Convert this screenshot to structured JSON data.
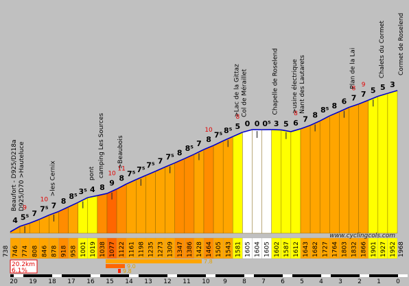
{
  "chart_data": {
    "type": "area",
    "watermark": "www.cyclingcols.com",
    "start_altitude": "738",
    "end_altitude": "1968",
    "km_ticks": [
      "20",
      "19",
      "18",
      "17",
      "16",
      "15",
      "14",
      "13",
      "12",
      "11",
      "10",
      "9",
      "8",
      "7",
      "6",
      "5",
      "4",
      "3",
      "2",
      "1",
      "0"
    ],
    "summary": {
      "length": "20.2km",
      "avg_grade": "6.1%"
    },
    "max_bars": [
      "7.8",
      "9.0",
      "9.8"
    ],
    "segments": [
      {
        "alt": "746",
        "g": "4",
        "c": "#ffa500"
      },
      {
        "alt": "774",
        "g": "5⁵",
        "c": "#ffa500"
      },
      {
        "alt": "808",
        "g": "7",
        "c": "#ffa500"
      },
      {
        "alt": "846",
        "g": "7⁵",
        "c": "#ffa500"
      },
      {
        "alt": "878",
        "g": "7",
        "c": "#ffa500"
      },
      {
        "alt": "918",
        "g": "8",
        "c": "#ff8c00"
      },
      {
        "alt": "958",
        "g": "8⁵",
        "c": "#ffa500"
      },
      {
        "alt": "1001",
        "g": "3⁵",
        "c": "#ffff00"
      },
      {
        "alt": "1019",
        "g": "4",
        "c": "#ffff00"
      },
      {
        "alt": "1038",
        "g": "8",
        "c": "#ff8c00"
      },
      {
        "alt": "1077",
        "g": "9",
        "c": "#ff6600"
      },
      {
        "alt": "1122",
        "g": "8",
        "c": "#ff8c00"
      },
      {
        "alt": "1161",
        "g": "7⁵",
        "c": "#ffa500"
      },
      {
        "alt": "1198",
        "g": "7⁵",
        "c": "#ffa500"
      },
      {
        "alt": "1235",
        "g": "7⁵",
        "c": "#ffa500"
      },
      {
        "alt": "1273",
        "g": "7",
        "c": "#ffa500"
      },
      {
        "alt": "1309",
        "g": "7⁵",
        "c": "#ffa500"
      },
      {
        "alt": "1347",
        "g": "8",
        "c": "#ff8c00"
      },
      {
        "alt": "1386",
        "g": "8⁵",
        "c": "#ff8c00"
      },
      {
        "alt": "1428",
        "g": "7",
        "c": "#ffa500"
      },
      {
        "alt": "1464",
        "g": "8",
        "c": "#ff8c00"
      },
      {
        "alt": "1505",
        "g": "7⁵",
        "c": "#ffa500"
      },
      {
        "alt": "1543",
        "g": "8⁵",
        "c": "#ffa500"
      },
      {
        "alt": "1581",
        "g": "5",
        "c": "#ffff00"
      },
      {
        "alt": "1605",
        "g": "0",
        "c": "#ffffff"
      },
      {
        "alt": "1604",
        "g": "0",
        "c": "#ffffff"
      },
      {
        "alt": "1605",
        "g": "0⁵",
        "c": "#ffffff"
      },
      {
        "alt": "1602",
        "g": "3",
        "c": "#ffff00"
      },
      {
        "alt": "1587",
        "g": "5",
        "c": "#ffff00"
      },
      {
        "alt": "1612",
        "g": "6",
        "c": "#ffff00"
      },
      {
        "alt": "1643",
        "g": "7",
        "c": "#ffa500"
      },
      {
        "alt": "1682",
        "g": "8",
        "c": "#ffa500"
      },
      {
        "alt": "1727",
        "g": "8⁵",
        "c": "#ffa500"
      },
      {
        "alt": "1764",
        "g": "8",
        "c": "#ffa500"
      },
      {
        "alt": "1803",
        "g": "6",
        "c": "#ffa500"
      },
      {
        "alt": "1832",
        "g": "7",
        "c": "#ffa500"
      },
      {
        "alt": "1866",
        "g": "7",
        "c": "#ffa500"
      },
      {
        "alt": "1901",
        "g": "5",
        "c": "#ffff00"
      },
      {
        "alt": "1927",
        "g": "5",
        "c": "#ffff00"
      },
      {
        "alt": "1952",
        "g": "3",
        "c": "#ffff00"
      }
    ],
    "max_grades": [
      {
        "seg": 1,
        "v": "9"
      },
      {
        "seg": 3,
        "v": "10"
      },
      {
        "seg": 10,
        "v": "10"
      },
      {
        "seg": 11,
        "v": "11"
      },
      {
        "seg": 20,
        "v": "10"
      },
      {
        "seg": 23,
        "v": "8"
      },
      {
        "seg": 29,
        "v": "8"
      },
      {
        "seg": 35,
        "v": "8"
      },
      {
        "seg": 36,
        "v": "9"
      }
    ],
    "labels": [
      {
        "seg": 0,
        "text": "Beaufort - D925/D218a"
      },
      {
        "seg": 0,
        "text": "D925/D70 >Hauteluce"
      },
      {
        "seg": 4,
        "text": ">les Cernix"
      },
      {
        "seg": 8,
        "text": "pont"
      },
      {
        "seg": 9,
        "text": "camping Les Sources"
      },
      {
        "seg": 11,
        "text": ">Beaubois"
      },
      {
        "seg": 23,
        "text": ">Lac de la Gittaz"
      },
      {
        "seg": 23,
        "text": "Col de Méraillet"
      },
      {
        "seg": 27,
        "text": "Chapelle de Roselend"
      },
      {
        "seg": 29,
        "text": ">usine électrique"
      },
      {
        "seg": 29,
        "text": "Nant des Lautarets"
      },
      {
        "seg": 35,
        "text": "Plan de la Lai"
      },
      {
        "seg": 38,
        "text": "Chalets du Cormet"
      },
      {
        "seg": 40,
        "text": "Cormet de Roselend"
      }
    ]
  }
}
